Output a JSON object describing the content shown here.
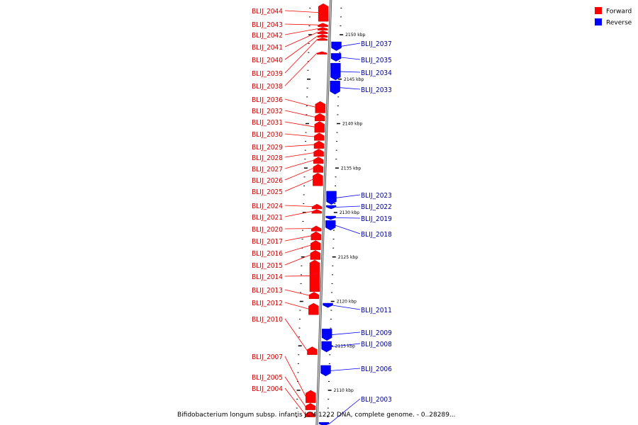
{
  "caption": "Bifidobacterium longum subsp. infantis JCM 1222 DNA, complete genome. - 0..28289...",
  "legend": [
    {
      "label": "Forward",
      "color": "#ff0000"
    },
    {
      "label": "Reverse",
      "color": "#0000ff"
    }
  ],
  "colors": {
    "forward": "#ff0000",
    "reverse": "#0000ff",
    "forward_text": "#cc0000",
    "reverse_text": "#000099",
    "backbone": "#999999"
  },
  "ticks": [
    {
      "label": "2150 kbp",
      "kbp": 2150
    },
    {
      "label": "2145 kbp",
      "kbp": 2145
    },
    {
      "label": "2140 kbp",
      "kbp": 2140
    },
    {
      "label": "2135 kbp",
      "kbp": 2135
    },
    {
      "label": "2130 kbp",
      "kbp": 2130
    },
    {
      "label": "2125 kbp",
      "kbp": 2125
    },
    {
      "label": "2120 kbp",
      "kbp": 2120
    },
    {
      "label": "2115 kbp",
      "kbp": 2115
    },
    {
      "label": "2110 kbp",
      "kbp": 2110
    }
  ],
  "forward_genes": [
    {
      "label": "BLIJ_2044",
      "start_kbp": 2151.5,
      "end_kbp": 2153.5
    },
    {
      "label": "BLIJ_2043",
      "start_kbp": 2150.9,
      "end_kbp": 2151.3
    },
    {
      "label": "BLIJ_2042",
      "start_kbp": 2150.5,
      "end_kbp": 2150.85
    },
    {
      "label": "BLIJ_2041",
      "start_kbp": 2150.1,
      "end_kbp": 2150.45
    },
    {
      "label": "BLIJ_2040",
      "start_kbp": 2149.7,
      "end_kbp": 2150.05
    },
    {
      "label": "BLIJ_2039",
      "start_kbp": 2149.35,
      "end_kbp": 2149.65
    },
    {
      "label": "BLIJ_2038",
      "start_kbp": 2147.8,
      "end_kbp": 2148.1
    },
    {
      "label": "BLIJ_2036",
      "start_kbp": 2141.2,
      "end_kbp": 2142.5
    },
    {
      "label": "BLIJ_2032",
      "start_kbp": 2140.3,
      "end_kbp": 2141.15
    },
    {
      "label": "BLIJ_2031",
      "start_kbp": 2139.0,
      "end_kbp": 2140.25
    },
    {
      "label": "BLIJ_2030",
      "start_kbp": 2138.1,
      "end_kbp": 2138.95
    },
    {
      "label": "BLIJ_2029",
      "start_kbp": 2137.2,
      "end_kbp": 2138.05
    },
    {
      "label": "BLIJ_2028",
      "start_kbp": 2136.3,
      "end_kbp": 2137.15
    },
    {
      "label": "BLIJ_2027",
      "start_kbp": 2135.5,
      "end_kbp": 2136.25
    },
    {
      "label": "BLIJ_2026",
      "start_kbp": 2134.5,
      "end_kbp": 2135.45
    },
    {
      "label": "BLIJ_2025",
      "start_kbp": 2133.0,
      "end_kbp": 2134.45
    },
    {
      "label": "BLIJ_2024",
      "start_kbp": 2130.4,
      "end_kbp": 2130.95
    },
    {
      "label": "BLIJ_2021",
      "start_kbp": 2129.9,
      "end_kbp": 2130.35
    },
    {
      "label": "BLIJ_2020",
      "start_kbp": 2127.9,
      "end_kbp": 2128.5
    },
    {
      "label": "BLIJ_2017",
      "start_kbp": 2126.9,
      "end_kbp": 2127.85
    },
    {
      "label": "BLIJ_2016",
      "start_kbp": 2125.8,
      "end_kbp": 2126.85
    },
    {
      "label": "BLIJ_2015",
      "start_kbp": 2124.7,
      "end_kbp": 2125.75
    },
    {
      "label": "BLIJ_2014",
      "start_kbp": 2121.1,
      "end_kbp": 2124.65
    },
    {
      "label": "BLIJ_2013",
      "start_kbp": 2120.3,
      "end_kbp": 2121.05
    },
    {
      "label": "BLIJ_2012",
      "start_kbp": 2118.5,
      "end_kbp": 2119.8
    },
    {
      "label": "BLIJ_2010",
      "start_kbp": 2114.0,
      "end_kbp": 2114.9
    },
    {
      "label": "BLIJ_2007",
      "start_kbp": 2108.6,
      "end_kbp": 2110.0
    },
    {
      "label": "BLIJ_2005",
      "start_kbp": 2107.8,
      "end_kbp": 2108.55
    },
    {
      "label": "BLIJ_2004",
      "start_kbp": 2107.0,
      "end_kbp": 2107.6
    }
  ],
  "reverse_genes": [
    {
      "label": "BLIJ_2037",
      "start_kbp": 2148.2,
      "end_kbp": 2149.2
    },
    {
      "label": "BLIJ_2035",
      "start_kbp": 2147.0,
      "end_kbp": 2147.9
    },
    {
      "label": "BLIJ_2034",
      "start_kbp": 2144.9,
      "end_kbp": 2146.8
    },
    {
      "label": "BLIJ_2033",
      "start_kbp": 2143.3,
      "end_kbp": 2144.8
    },
    {
      "label": "BLIJ_2023",
      "start_kbp": 2130.9,
      "end_kbp": 2132.4
    },
    {
      "label": "BLIJ_2022",
      "start_kbp": 2130.4,
      "end_kbp": 2130.8
    },
    {
      "label": "BLIJ_2019",
      "start_kbp": 2129.2,
      "end_kbp": 2129.6
    },
    {
      "label": "BLIJ_2018",
      "start_kbp": 2128.0,
      "end_kbp": 2129.1
    },
    {
      "label": "BLIJ_2011",
      "start_kbp": 2119.3,
      "end_kbp": 2119.8
    },
    {
      "label": "BLIJ_2009",
      "start_kbp": 2115.6,
      "end_kbp": 2116.9
    },
    {
      "label": "BLIJ_2008",
      "start_kbp": 2114.3,
      "end_kbp": 2115.5
    },
    {
      "label": "BLIJ_2006",
      "start_kbp": 2111.6,
      "end_kbp": 2112.8
    },
    {
      "label": "BLIJ_2003",
      "start_kbp": 2106.0,
      "end_kbp": 2106.4
    }
  ]
}
